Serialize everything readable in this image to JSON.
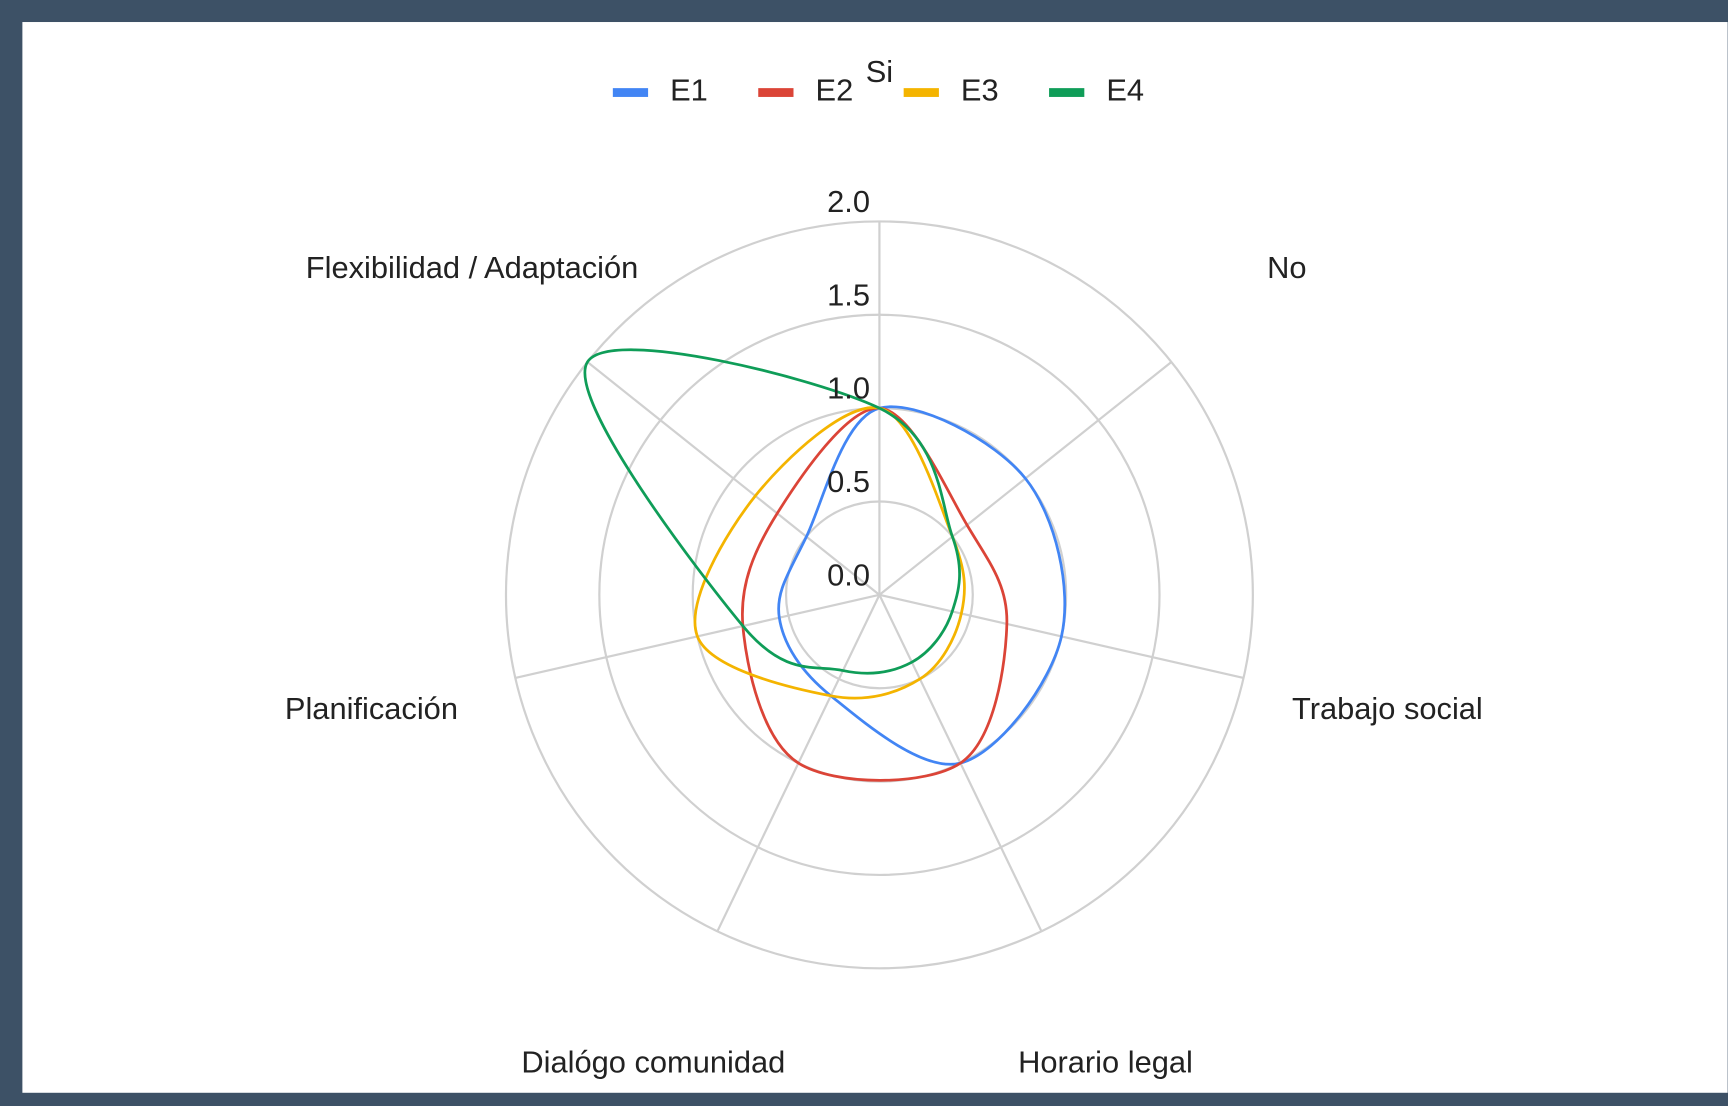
{
  "chart_data": {
    "type": "radar",
    "categories": [
      "Si",
      "No",
      "Trabajo social",
      "Horario legal",
      "Dialógo comunidad",
      "Planificación",
      "Flexibilidad / Adaptación"
    ],
    "series": [
      {
        "name": "E1",
        "color": "#4285f4",
        "values": [
          1,
          1,
          1,
          1,
          0.6,
          0.55,
          0.5
        ]
      },
      {
        "name": "E2",
        "color": "#db4437",
        "values": [
          1,
          0.6,
          0.7,
          1,
          1,
          0.75,
          0.7
        ]
      },
      {
        "name": "E3",
        "color": "#f4b400",
        "values": [
          1,
          0.5,
          0.45,
          0.5,
          0.6,
          1,
          0.85
        ]
      },
      {
        "name": "E4",
        "color": "#0f9d58",
        "values": [
          1,
          0.5,
          0.4,
          0.4,
          0.45,
          0.75,
          2
        ]
      }
    ],
    "ylim": [
      0,
      2
    ],
    "yticks": [
      {
        "value": 0,
        "label": "0.0"
      },
      0.5,
      {
        "value": 1,
        "label": "1.0"
      },
      1.5,
      {
        "value": 2,
        "label": "2.0"
      }
    ],
    "grid": true,
    "legend": "top"
  }
}
